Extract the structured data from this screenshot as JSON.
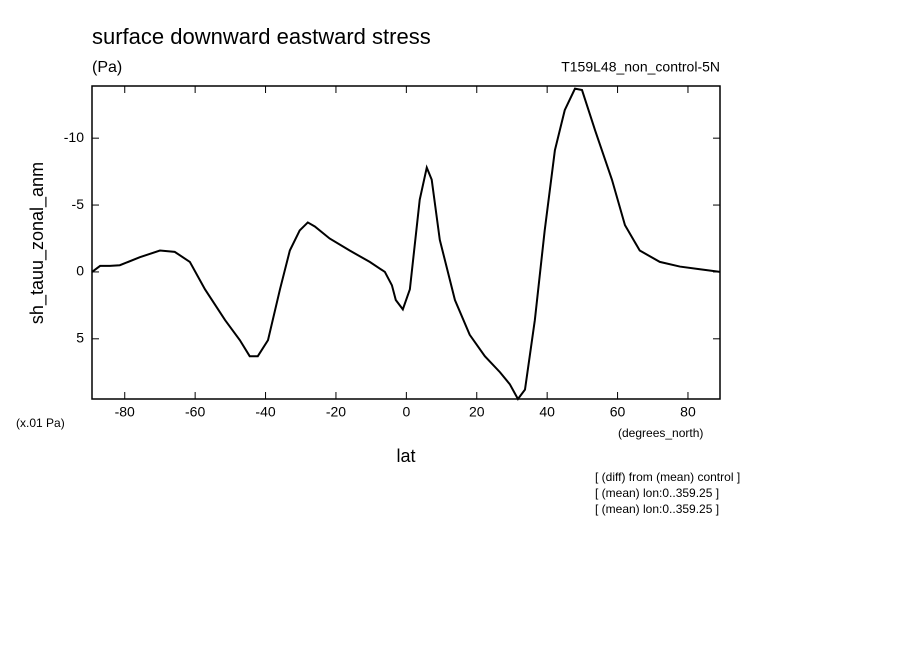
{
  "chart_data": {
    "type": "line",
    "title": "surface downward eastward stress",
    "subtitle": "(Pa)",
    "experiment": "T159L48_non_control-5N",
    "y_label": "sh_tauu_zonal_anm",
    "y_unit": "(x.01 Pa)",
    "x_unit": "(degrees_north)",
    "x_label": "lat",
    "notes": [
      "[ (diff) from (mean) control ]",
      "[ (mean) lon:0..359.25 ]",
      "[ (mean) lon:0..359.25 ]"
    ],
    "color": "#000000",
    "x": [
      -89.3,
      -87,
      -84.2,
      -81.4,
      -75.7,
      -70,
      -65.8,
      -61.5,
      -57.2,
      -51.5,
      -47.3,
      -44.5,
      -42.2,
      -39.3,
      -35.9,
      -33.1,
      -30.3,
      -28,
      -26,
      -21.8,
      -16.1,
      -10.4,
      -6.1,
      -4.1,
      -3,
      -1,
      1,
      3.8,
      5.8,
      7.2,
      9.5,
      13.8,
      18,
      22.3,
      26.6,
      29.4,
      31.7,
      33.7,
      36.5,
      39.3,
      42.2,
      45,
      47.9,
      49.9,
      53.6,
      58.4,
      62.1,
      66.3,
      72,
      77.7,
      83.4,
      89.1
    ],
    "values": [
      0,
      -0.45,
      -0.45,
      -0.5,
      -1.1,
      -1.6,
      -1.5,
      -0.75,
      1.3,
      3.6,
      5.1,
      6.3,
      6.3,
      5.1,
      1.3,
      -1.6,
      -3.1,
      -3.7,
      -3.4,
      -2.5,
      -1.6,
      -0.75,
      0,
      1,
      2.1,
      2.8,
      1.3,
      -5.4,
      -7.8,
      -6.9,
      -2.4,
      2.1,
      4.7,
      6.3,
      7.5,
      8.4,
      9.5,
      8.8,
      3.6,
      -3.1,
      -9.1,
      -12.1,
      -13.7,
      -13.6,
      -10.6,
      -6.9,
      -3.5,
      -1.6,
      -0.75,
      -0.4,
      -0.2,
      0
    ],
    "xlim": [
      -89.3,
      89.1
    ],
    "xticks": [
      -80,
      -60,
      -40,
      -20,
      0,
      20,
      40,
      60,
      80
    ],
    "ylim": [
      9.5,
      -13.9
    ],
    "yticks": [
      -10,
      -5,
      0,
      5
    ]
  }
}
